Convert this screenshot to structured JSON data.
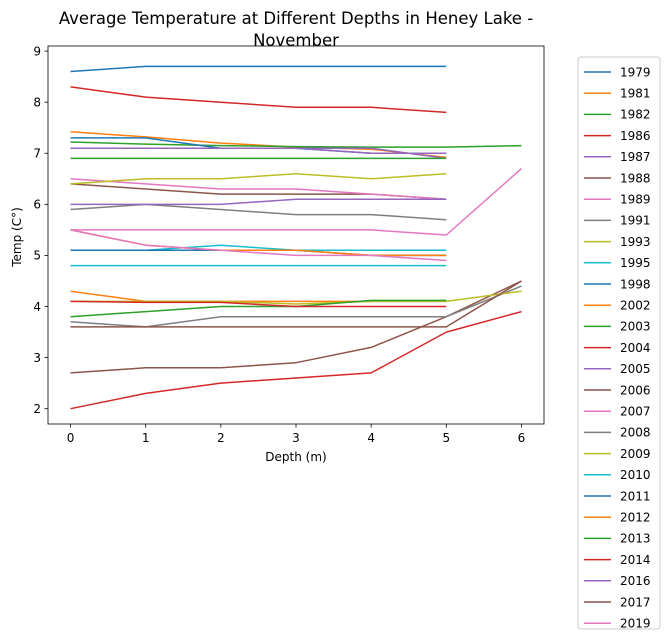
{
  "chart_data": {
    "type": "line",
    "title_line1": "Average Temperature at Different Depths in Heney Lake -",
    "title_line2": "November",
    "xlabel": "Depth (m)",
    "ylabel": "Temp (C°)",
    "xlim": [
      -0.3,
      6.3
    ],
    "ylim": [
      1.7,
      9.1
    ],
    "xticks": [
      0,
      1,
      2,
      3,
      4,
      5,
      6
    ],
    "yticks": [
      2,
      3,
      4,
      5,
      6,
      7,
      8,
      9
    ],
    "grid": false,
    "legend_position": "outside-right",
    "series": [
      {
        "name": "1979",
        "color": "#1f77b4",
        "x": [
          0,
          1,
          2,
          3,
          4,
          5
        ],
        "y": [
          8.6,
          8.7,
          8.7,
          8.7,
          8.7,
          8.7
        ]
      },
      {
        "name": "1981",
        "color": "#ff7f0e",
        "x": [
          0,
          1,
          2,
          3,
          4,
          5
        ],
        "y": [
          7.42,
          7.32,
          7.2,
          7.12,
          7.08,
          6.92
        ]
      },
      {
        "name": "1982",
        "color": "#2ca02c",
        "x": [
          0,
          1,
          2,
          3,
          4,
          5,
          6
        ],
        "y": [
          7.22,
          7.18,
          7.15,
          7.13,
          7.12,
          7.12,
          7.15
        ]
      },
      {
        "name": "1986",
        "color": "#d62728",
        "x": [
          0,
          1,
          2,
          3,
          4,
          5
        ],
        "y": [
          8.3,
          8.1,
          8.0,
          7.9,
          7.9,
          7.8
        ]
      },
      {
        "name": "1987",
        "color": "#9467bd",
        "x": [
          0,
          1,
          2,
          3,
          4,
          5
        ],
        "y": [
          7.1,
          7.1,
          7.1,
          7.1,
          7.1,
          6.9
        ]
      },
      {
        "name": "1988",
        "color": "#8c564b",
        "x": [
          0,
          1,
          2,
          3,
          4,
          5
        ],
        "y": [
          6.4,
          6.3,
          6.2,
          6.2,
          6.2,
          6.1
        ]
      },
      {
        "name": "1989",
        "color": "#e377c2",
        "x": [
          0,
          1,
          2,
          3,
          4,
          5
        ],
        "y": [
          6.5,
          6.4,
          6.3,
          6.3,
          6.2,
          6.1
        ]
      },
      {
        "name": "1991",
        "color": "#7f7f7f",
        "x": [
          0,
          1,
          2,
          3,
          4,
          5
        ],
        "y": [
          5.9,
          6.0,
          5.9,
          5.8,
          5.8,
          5.7
        ]
      },
      {
        "name": "1993",
        "color": "#bcbd22",
        "x": [
          0,
          1,
          2,
          3,
          4,
          5
        ],
        "y": [
          6.4,
          6.5,
          6.5,
          6.6,
          6.5,
          6.6
        ]
      },
      {
        "name": "1995",
        "color": "#17becf",
        "x": [
          0,
          1,
          2,
          3,
          4,
          5
        ],
        "y": [
          5.1,
          5.1,
          5.2,
          5.1,
          5.1,
          5.1
        ]
      },
      {
        "name": "1998",
        "color": "#1f77b4",
        "x": [
          0,
          1,
          2,
          3,
          4,
          5
        ],
        "y": [
          7.3,
          7.3,
          7.1,
          7.1,
          7.0,
          7.0
        ]
      },
      {
        "name": "2002",
        "color": "#ff7f0e",
        "x": [
          0,
          1,
          2,
          3,
          4,
          5
        ],
        "y": [
          4.3,
          4.1,
          4.1,
          4.1,
          4.1,
          4.1
        ]
      },
      {
        "name": "2003",
        "color": "#2ca02c",
        "x": [
          0,
          1,
          2,
          3,
          4,
          5
        ],
        "y": [
          6.9,
          6.9,
          6.9,
          6.9,
          6.9,
          6.9
        ]
      },
      {
        "name": "2004",
        "color": "#d62728",
        "x": [
          0,
          1,
          2,
          3,
          4,
          5,
          6
        ],
        "y": [
          2.0,
          2.3,
          2.5,
          2.6,
          2.7,
          3.5,
          3.9
        ]
      },
      {
        "name": "2005",
        "color": "#9467bd",
        "x": [
          0,
          1,
          2,
          3,
          4,
          5
        ],
        "y": [
          6.0,
          6.0,
          6.0,
          6.1,
          6.1,
          6.1
        ]
      },
      {
        "name": "2006",
        "color": "#8c564b",
        "x": [
          0,
          1,
          2,
          3,
          4,
          5,
          6
        ],
        "y": [
          2.7,
          2.8,
          2.8,
          2.9,
          3.2,
          3.8,
          4.5
        ]
      },
      {
        "name": "2007",
        "color": "#e377c2",
        "x": [
          0,
          1,
          2,
          3,
          4,
          5,
          6
        ],
        "y": [
          5.5,
          5.5,
          5.5,
          5.5,
          5.5,
          5.4,
          6.7
        ]
      },
      {
        "name": "2008",
        "color": "#7f7f7f",
        "x": [
          0,
          1,
          2,
          3,
          4,
          5,
          6
        ],
        "y": [
          3.7,
          3.6,
          3.8,
          3.8,
          3.8,
          3.8,
          4.4
        ]
      },
      {
        "name": "2009",
        "color": "#bcbd22",
        "x": [
          0,
          1,
          2,
          3,
          4,
          5,
          6
        ],
        "y": [
          4.1,
          4.1,
          4.1,
          4.05,
          4.1,
          4.1,
          4.3
        ]
      },
      {
        "name": "2010",
        "color": "#17becf",
        "x": [
          0,
          1,
          2,
          3,
          4,
          5
        ],
        "y": [
          4.8,
          4.8,
          4.8,
          4.8,
          4.8,
          4.8
        ]
      },
      {
        "name": "2011",
        "color": "#1f77b4",
        "x": [
          0,
          1,
          2,
          3,
          4,
          5
        ],
        "y": [
          5.1,
          5.1,
          5.1,
          5.1,
          5.0,
          5.0
        ]
      },
      {
        "name": "2012",
        "color": "#ff7f0e",
        "x": [
          0,
          1,
          2,
          3,
          4,
          5
        ],
        "y": [
          5.5,
          5.2,
          5.1,
          5.1,
          5.0,
          5.0
        ]
      },
      {
        "name": "2013",
        "color": "#2ca02c",
        "x": [
          0,
          1,
          2,
          3,
          4,
          5
        ],
        "y": [
          3.8,
          3.9,
          4.0,
          4.0,
          4.12,
          4.12
        ]
      },
      {
        "name": "2014",
        "color": "#d62728",
        "x": [
          0,
          1,
          2,
          3,
          4,
          5
        ],
        "y": [
          4.1,
          4.08,
          4.08,
          4.0,
          4.0,
          4.0
        ]
      },
      {
        "name": "2016",
        "color": "#9467bd",
        "x": [
          0,
          1,
          2,
          3,
          4,
          5
        ],
        "y": [
          7.1,
          7.1,
          7.1,
          7.1,
          7.0,
          7.0
        ]
      },
      {
        "name": "2017",
        "color": "#8c564b",
        "x": [
          0,
          1,
          2,
          3,
          4,
          5,
          6
        ],
        "y": [
          3.6,
          3.6,
          3.6,
          3.6,
          3.6,
          3.6,
          4.5
        ]
      },
      {
        "name": "2019",
        "color": "#e377c2",
        "x": [
          0,
          1,
          2,
          3,
          4,
          5
        ],
        "y": [
          5.5,
          5.2,
          5.1,
          5.0,
          5.0,
          4.9
        ]
      }
    ]
  }
}
